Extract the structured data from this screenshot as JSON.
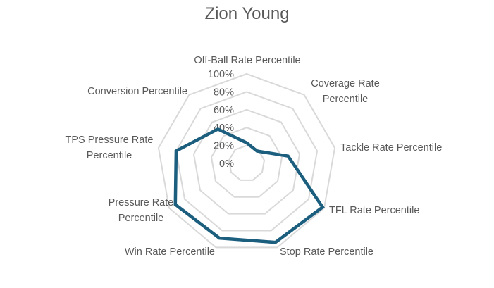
{
  "chart_data": {
    "type": "radar",
    "title": "Zion Young",
    "categories": [
      "Off-Ball Rate Percentile",
      "Coverage Rate Percentile",
      "Tackle Rate Percentile",
      "TFL Rate Percentile",
      "Stop Rate Percentile",
      "Win Rate Percentile",
      "Pressure Rate Percentile",
      "TPS Pressure Rate Percentile",
      "Conversion Percentile"
    ],
    "series": [
      {
        "name": "Zion Young",
        "values": [
          0.23,
          0.18,
          0.47,
          0.98,
          0.94,
          0.89,
          0.92,
          0.8,
          0.5
        ],
        "color": "#1B5E7E"
      }
    ],
    "radial_ticks": [
      "0%",
      "20%",
      "40%",
      "60%",
      "80%",
      "100%"
    ],
    "rlim": [
      0,
      1
    ],
    "grid": true,
    "grid_color": "#D9D9D9",
    "legend": "none"
  },
  "labels": {
    "axis_lines": [
      [
        "Off-Ball Rate Percentile"
      ],
      [
        "Coverage Rate",
        "Percentile"
      ],
      [
        "Tackle Rate Percentile"
      ],
      [
        "TFL Rate Percentile"
      ],
      [
        "Stop Rate Percentile"
      ],
      [
        "Win Rate Percentile"
      ],
      [
        "Pressure Rate",
        "Percentile"
      ],
      [
        "TPS Pressure Rate",
        "Percentile"
      ],
      [
        "Conversion Percentile"
      ]
    ]
  }
}
